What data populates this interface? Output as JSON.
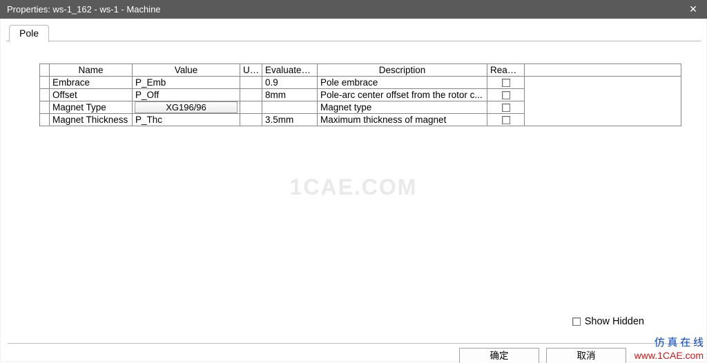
{
  "window": {
    "title": "Properties: ws-1_162 - ws-1 - Machine",
    "close_glyph": "✕"
  },
  "tabs": {
    "active": "Pole"
  },
  "table": {
    "headers": {
      "name": "Name",
      "value": "Value",
      "unit": "Unit",
      "evaluated": "Evaluated...",
      "description": "Description",
      "readonly": "Read-o..."
    },
    "rows": [
      {
        "name": "Embrace",
        "value": "P_Emb",
        "value_is_button": false,
        "unit": "",
        "evaluated": "0.9",
        "description": "Pole embrace"
      },
      {
        "name": "Offset",
        "value": "P_Off",
        "value_is_button": false,
        "unit": "",
        "evaluated": "8mm",
        "description": "Pole-arc center offset from the rotor c..."
      },
      {
        "name": "Magnet Type",
        "value": "XG196/96",
        "value_is_button": true,
        "unit": "",
        "evaluated": "",
        "description": "Magnet type"
      },
      {
        "name": "Magnet Thickness",
        "value": "P_Thc",
        "value_is_button": false,
        "unit": "",
        "evaluated": "3.5mm",
        "description": "Maximum thickness of magnet"
      }
    ]
  },
  "watermark": "1CAE.COM",
  "show_hidden_label": "Show Hidden",
  "buttons": {
    "ok": "确定",
    "cancel": "取消"
  },
  "footer": {
    "line1": "仿 真 在 线",
    "line2": "www.1CAE.com"
  },
  "style": {
    "titlebar_bg": "#5a5a5a",
    "grid_border": "#868686",
    "btn_border": "#a0a0a0"
  }
}
